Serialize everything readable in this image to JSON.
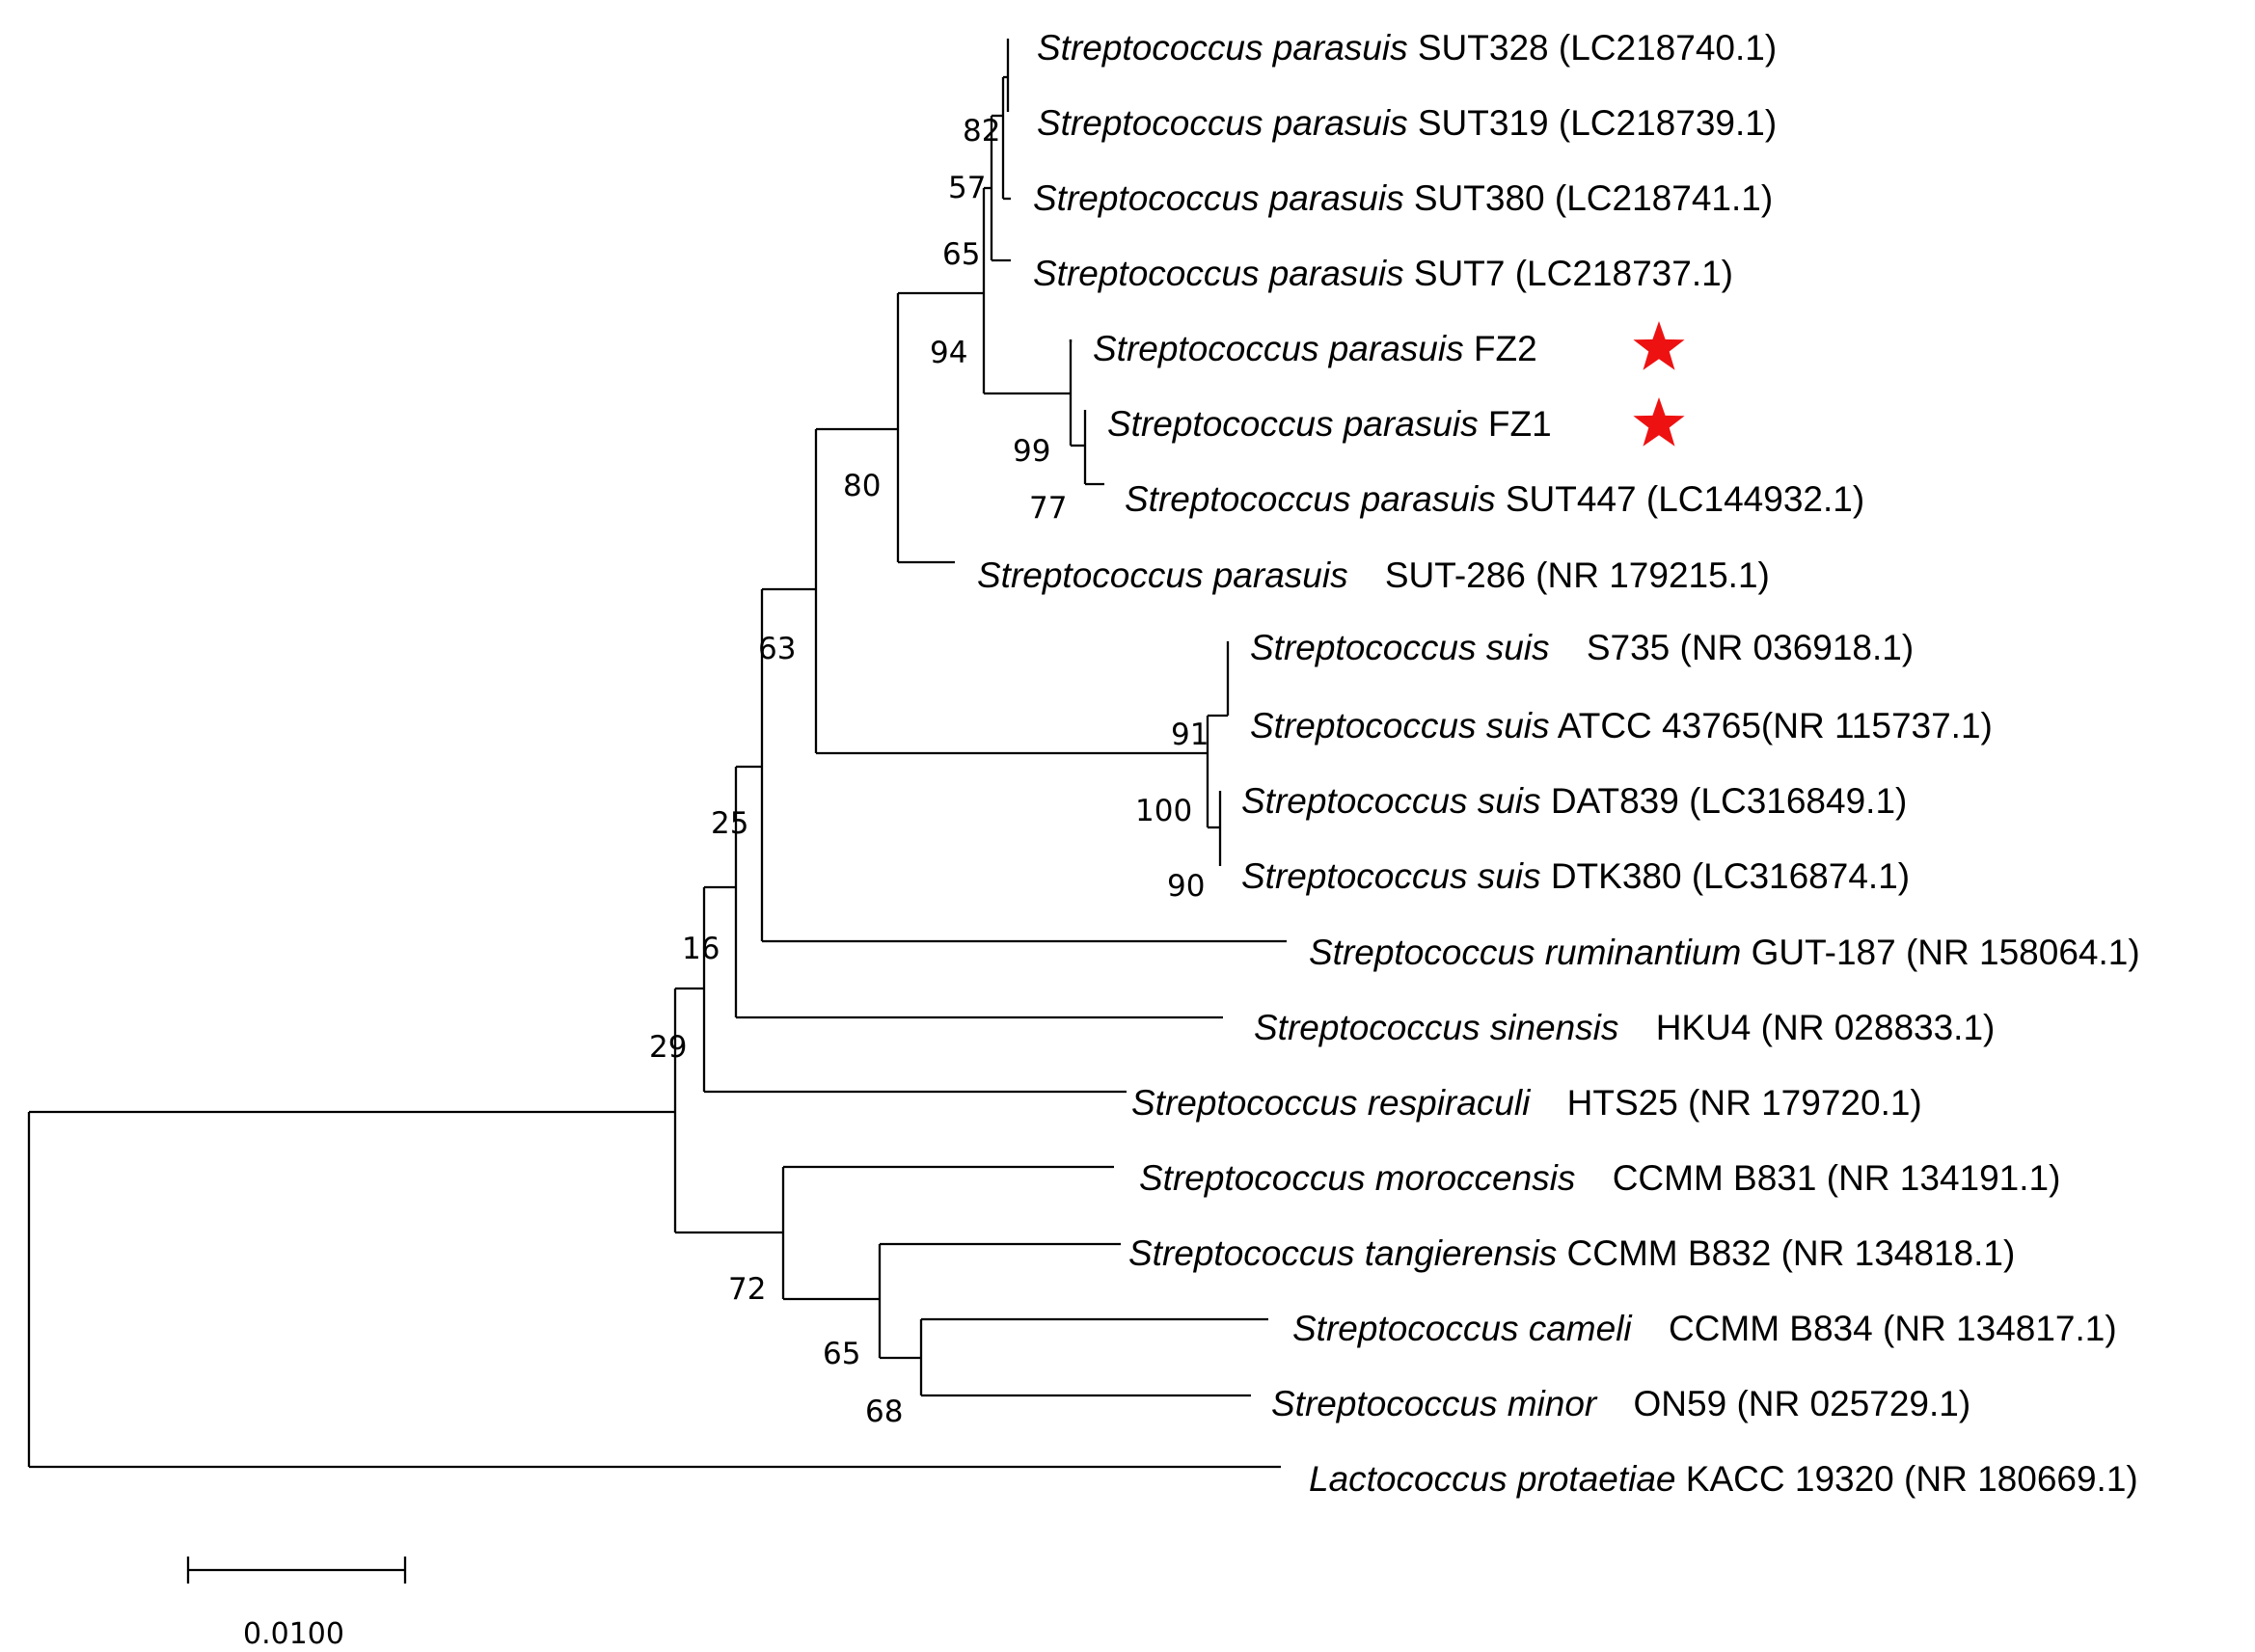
{
  "leaves": [
    {
      "species": "Streptococcus parasuis",
      "strain": "SUT328 (LC218740.1)",
      "star": false
    },
    {
      "species": "Streptococcus parasuis",
      "strain": "SUT319 (LC218739.1)",
      "star": false
    },
    {
      "species": "Streptococcus parasuis",
      "strain": "SUT380 (LC218741.1)",
      "star": false
    },
    {
      "species": "Streptococcus parasuis",
      "strain": "SUT7 (LC218737.1)",
      "star": false
    },
    {
      "species": "Streptococcus parasuis",
      "strain": "FZ2",
      "star": true
    },
    {
      "species": "Streptococcus parasuis",
      "strain": "FZ1",
      "star": true
    },
    {
      "species": "Streptococcus parasuis",
      "strain": "SUT447 (LC144932.1)",
      "star": false
    },
    {
      "species": "Streptococcus parasuis",
      "strain": "SUT-286 (NR 179215.1)",
      "star": false
    },
    {
      "species": "Streptococcus suis",
      "strain": "S735 (NR 036918.1)",
      "star": false
    },
    {
      "species": "Streptococcus suis",
      "strain": "ATCC 43765(NR 115737.1)",
      "star": false
    },
    {
      "species": "Streptococcus suis",
      "strain": "DAT839 (LC316849.1)",
      "star": false
    },
    {
      "species": "Streptococcus suis",
      "strain": "DTK380 (LC316874.1)",
      "star": false
    },
    {
      "species": "Streptococcus ruminantium",
      "strain": "GUT-187 (NR 158064.1)",
      "star": false
    },
    {
      "species": "Streptococcus sinensis",
      "strain": "HKU4 (NR 028833.1)",
      "star": false
    },
    {
      "species": "Streptococcus respiraculi",
      "strain": "HTS25 (NR 179720.1)",
      "star": false
    },
    {
      "species": "Streptococcus moroccensis",
      "strain": "CCMM B831 (NR 134191.1)",
      "star": false
    },
    {
      "species": "Streptococcus tangierensis",
      "strain": "CCMM B832 (NR 134818.1)",
      "star": false
    },
    {
      "species": "Streptococcus cameli",
      "strain": "CCMM B834 (NR 134817.1)",
      "star": false
    },
    {
      "species": "Streptococcus minor",
      "strain": "ON59 (NR 025729.1)",
      "star": false
    },
    {
      "species": "Lactococcus protaetiae",
      "strain": "KACC 19320 (NR 180669.1)",
      "star": false
    }
  ],
  "bootstrap": [
    "82",
    "57",
    "65",
    "94",
    "99",
    "77",
    "80",
    "63",
    "91",
    "100",
    "90",
    "25",
    "16",
    "29",
    "72",
    "65",
    "68"
  ],
  "scale_bar": {
    "label": "0.0100",
    "value": 0.01
  },
  "colors": {
    "highlight_star": "#ee1111",
    "branch": "#000000"
  }
}
